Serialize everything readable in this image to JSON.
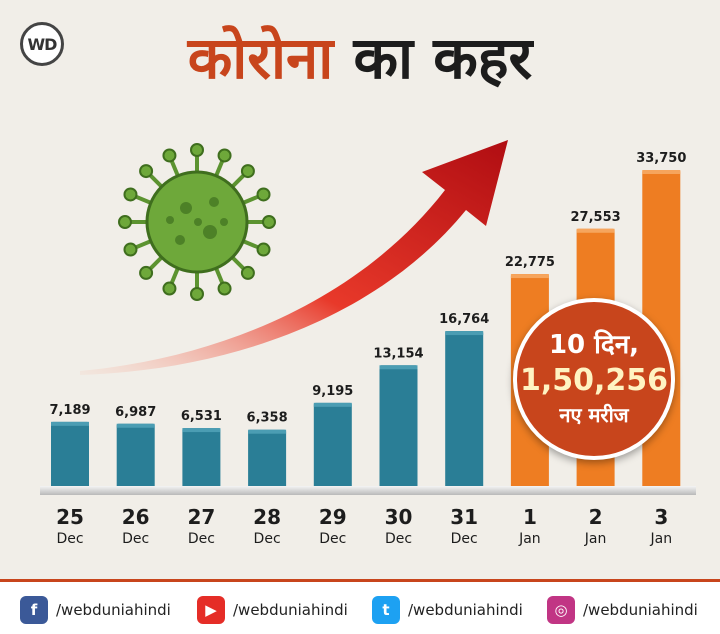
{
  "brand": {
    "logo_text": "WD"
  },
  "headline": {
    "part1": "कोरोना",
    "part2": "का कहर"
  },
  "callout": {
    "line1": "10 दिन,",
    "line2": "1,50,256",
    "line3": "नए मरीज"
  },
  "colors": {
    "dec_bar": "#2a7e96",
    "jan_bar": "#ee7d22",
    "accent": "#c8451c",
    "arrow": "#b81217"
  },
  "chart_data": {
    "type": "bar",
    "categories": [
      {
        "day": "25",
        "month": "Dec"
      },
      {
        "day": "26",
        "month": "Dec"
      },
      {
        "day": "27",
        "month": "Dec"
      },
      {
        "day": "28",
        "month": "Dec"
      },
      {
        "day": "29",
        "month": "Dec"
      },
      {
        "day": "30",
        "month": "Dec"
      },
      {
        "day": "31",
        "month": "Dec"
      },
      {
        "day": "1",
        "month": "Jan"
      },
      {
        "day": "2",
        "month": "Jan"
      },
      {
        "day": "3",
        "month": "Jan"
      }
    ],
    "values": [
      7189,
      6987,
      6531,
      6358,
      9195,
      13154,
      16764,
      22775,
      27553,
      33750
    ],
    "value_labels": [
      "7,189",
      "6,987",
      "6,531",
      "6,358",
      "9,195",
      "13,154",
      "16,764",
      "22,775",
      "27,553",
      "33,750"
    ],
    "title": "कोरोना का कहर",
    "xlabel": "",
    "ylabel": "",
    "grid": false,
    "legend": "none"
  },
  "footer": {
    "items": [
      {
        "icon": "facebook-icon",
        "glyph": "f",
        "color": "#3b5998",
        "handle": "/webduniahindi"
      },
      {
        "icon": "youtube-icon",
        "glyph": "▶",
        "color": "#e52d27",
        "handle": "/webduniahindi"
      },
      {
        "icon": "twitter-icon",
        "glyph": "t",
        "color": "#1da1f2",
        "handle": "/webduniahindi"
      },
      {
        "icon": "instagram-icon",
        "glyph": "◎",
        "color": "#c13584",
        "handle": "/webduniahindi"
      }
    ]
  }
}
